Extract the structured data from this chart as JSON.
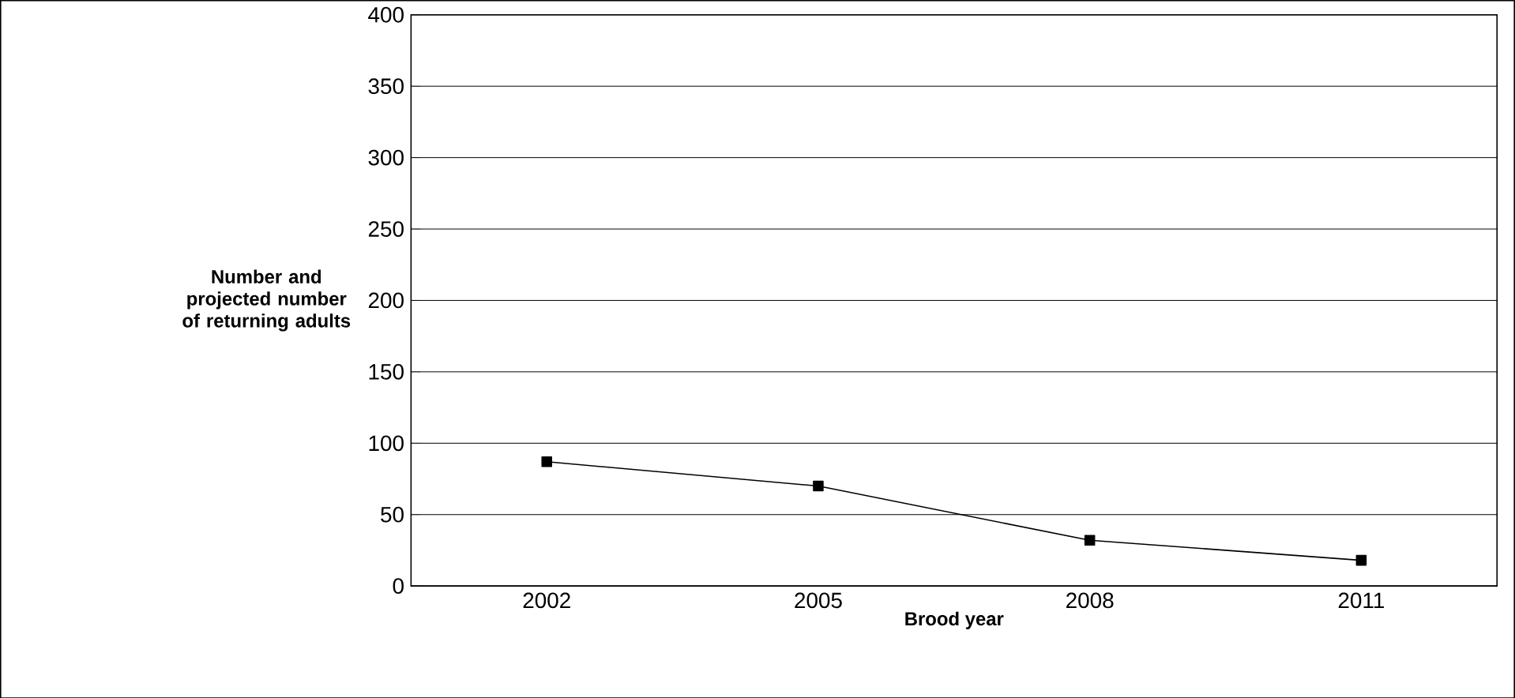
{
  "chart_data": {
    "type": "line",
    "xlabel": "Brood year",
    "ylabel": "Number and projected number of returning adults",
    "categories": [
      "2002",
      "2005",
      "2008",
      "2011"
    ],
    "series": [
      {
        "color": "#000000",
        "values": [
          87,
          70,
          32,
          18
        ]
      }
    ],
    "ylim": [
      0,
      400
    ],
    "yticks": [
      0,
      50,
      100,
      150,
      200,
      250,
      300,
      350,
      400
    ],
    "grid": "y",
    "marker": "square",
    "line_style": "solid"
  }
}
